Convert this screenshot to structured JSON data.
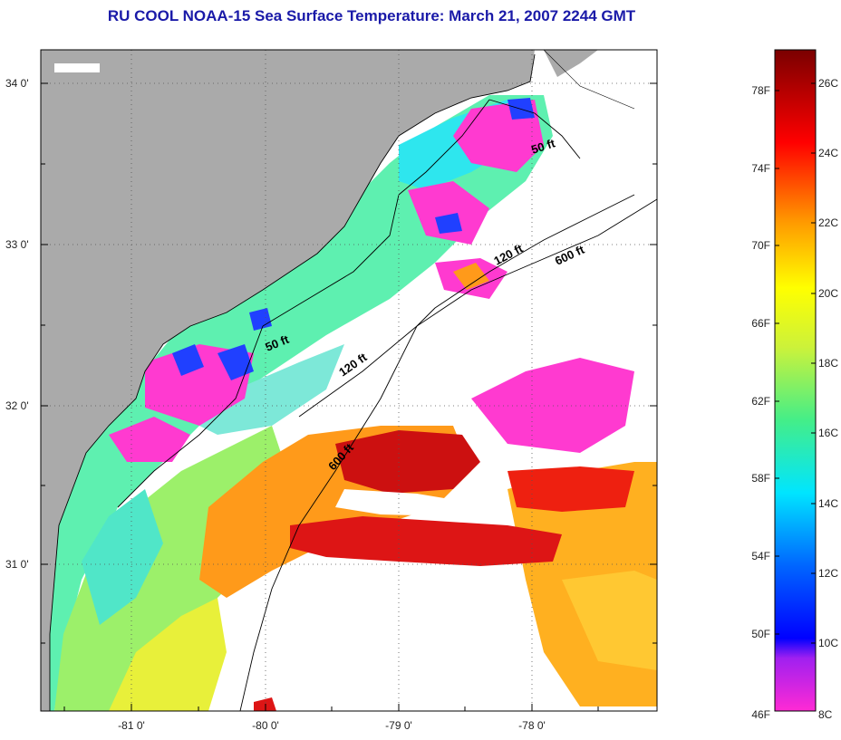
{
  "title": "RU COOL  NOAA-15  Sea Surface Temperature:  March 21, 2007 2244 GMT",
  "map": {
    "lat_labels": [
      "34 0'",
      "33 0'",
      "32 0'",
      "31 0'"
    ],
    "lon_labels": [
      "-81 0'",
      "-80 0'",
      "-79 0'",
      "-78 0'"
    ],
    "contours": [
      "50 ft",
      "50 ft",
      "120 ft",
      "120 ft",
      "600 ft",
      "600 ft"
    ],
    "colors": {
      "land": "#aaaaaa",
      "water_none": "#ffffff"
    }
  },
  "colorbar": {
    "fahrenheit_labels": [
      "78F",
      "74F",
      "70F",
      "66F",
      "62F",
      "58F",
      "54F",
      "50F",
      "46F"
    ],
    "celsius_labels": [
      "26C",
      "24C",
      "22C",
      "20C",
      "18C",
      "16C",
      "14C",
      "12C",
      "10C",
      "8C"
    ]
  }
}
